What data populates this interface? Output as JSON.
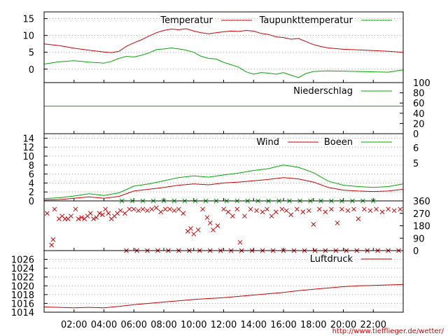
{
  "chart_data": [
    {
      "type": "line",
      "panel": "temperature",
      "ylim": [
        -4,
        17
      ],
      "yticks": [
        0,
        5,
        10,
        15
      ],
      "grid": true,
      "legend": "top-right",
      "series": [
        {
          "name": "Temperatur",
          "color": "#cc0000",
          "x": [
            0,
            1,
            2,
            3,
            4,
            4.5,
            5,
            5.5,
            6,
            6.5,
            7,
            7.5,
            8,
            8.5,
            9,
            9.5,
            10,
            10.5,
            11,
            11.5,
            12,
            12.5,
            13,
            13.5,
            14,
            14.5,
            15,
            15.5,
            16,
            16.5,
            17,
            17.5,
            18,
            18.5,
            19,
            20,
            21,
            22,
            23,
            24
          ],
          "y": [
            7.5,
            7,
            6.2,
            5.6,
            5.1,
            4.9,
            5.3,
            6.8,
            7.8,
            8.7,
            9.8,
            10.8,
            11.5,
            11.9,
            11.7,
            12,
            11.3,
            10.8,
            10.5,
            10.8,
            11.1,
            11.3,
            11.2,
            11.5,
            11.3,
            10.6,
            10.3,
            9.6,
            9.4,
            8.9,
            9.1,
            8.2,
            7.3,
            6.7,
            6.3,
            5.9,
            5.7,
            5.5,
            5.3,
            5.0
          ]
        },
        {
          "name": "Taupunkttemperatur",
          "color": "#00aa00",
          "x": [
            0,
            1,
            2,
            3,
            4,
            4.5,
            5,
            5.5,
            6,
            6.5,
            7,
            7.5,
            8,
            8.5,
            9,
            9.5,
            10,
            10.5,
            11,
            11.5,
            12,
            12.5,
            13,
            13.5,
            14,
            14.5,
            15,
            15.5,
            16,
            16.5,
            17,
            17.5,
            18,
            18.5,
            19,
            20,
            21,
            22,
            23,
            24
          ],
          "y": [
            1.5,
            2.2,
            2.5,
            2.1,
            1.8,
            2.3,
            3.2,
            3.8,
            3.6,
            4.1,
            4.8,
            5.8,
            6.0,
            6.3,
            6.0,
            5.6,
            5.0,
            3.8,
            3.2,
            3.0,
            2.0,
            1.3,
            0.6,
            -0.8,
            -1.5,
            -1.0,
            -1.2,
            -1.5,
            -1.0,
            -1.8,
            -2.5,
            -1.3,
            -0.7,
            -0.6,
            -0.5,
            -0.6,
            -0.7,
            -0.8,
            -0.9,
            -0.2
          ]
        }
      ]
    },
    {
      "type": "line",
      "panel": "precipitation",
      "ylim": [
        0,
        100
      ],
      "yticks": [
        0,
        20,
        40,
        60,
        80,
        100
      ],
      "legend": "top-right",
      "series": [
        {
          "name": "Niederschlag",
          "color": "#00aa00",
          "x": [
            0,
            24
          ],
          "y": [
            54,
            54
          ]
        }
      ]
    },
    {
      "type": "line",
      "panel": "wind",
      "ylim": [
        0,
        15
      ],
      "yticks": [
        0,
        2,
        4,
        6,
        8,
        10,
        12,
        14
      ],
      "right_ticks": [
        "6",
        "5"
      ],
      "grid": true,
      "legend": "top-right",
      "series": [
        {
          "name": "Wind",
          "color": "#cc0000",
          "x": [
            0,
            1,
            2,
            3,
            4,
            5,
            6,
            7,
            8,
            9,
            10,
            11,
            12,
            13,
            14,
            15,
            16,
            17,
            18,
            19,
            20,
            21,
            22,
            23,
            24
          ],
          "y": [
            0.2,
            0.3,
            0.6,
            0.9,
            0.6,
            1.0,
            2.2,
            2.6,
            3.0,
            3.5,
            3.8,
            3.6,
            4.0,
            4.2,
            4.5,
            4.8,
            5.2,
            4.9,
            4.2,
            3.0,
            2.4,
            2.2,
            2.1,
            2.2,
            2.6
          ]
        },
        {
          "name": "Boeen",
          "color": "#00aa00",
          "x": [
            0,
            1,
            2,
            3,
            4,
            5,
            6,
            7,
            8,
            9,
            10,
            11,
            12,
            13,
            14,
            15,
            16,
            17,
            18,
            19,
            20,
            21,
            22,
            23,
            24
          ],
          "y": [
            0.5,
            0.7,
            1.1,
            1.6,
            1.2,
            1.8,
            3.3,
            3.8,
            4.5,
            5.2,
            5.6,
            5.3,
            5.8,
            6.2,
            6.8,
            7.2,
            8.0,
            7.5,
            6.3,
            4.4,
            3.5,
            3.2,
            3.0,
            3.2,
            3.8
          ]
        }
      ]
    },
    {
      "type": "scatter",
      "panel": "wind-direction",
      "ylim": [
        0,
        360
      ],
      "yticks": [
        0,
        90,
        180,
        270,
        360
      ],
      "series": [
        {
          "color": "#cc0000",
          "points": [
            [
              0.2,
              270
            ],
            [
              0.5,
              40
            ],
            [
              0.6,
              80
            ],
            [
              0.7,
              300
            ],
            [
              1,
              230
            ],
            [
              1.2,
              250
            ],
            [
              1.4,
              230
            ],
            [
              1.6,
              230
            ],
            [
              1.8,
              250
            ],
            [
              2.1,
              300
            ],
            [
              2.3,
              230
            ],
            [
              2.5,
              240
            ],
            [
              2.7,
              230
            ],
            [
              2.9,
              250
            ],
            [
              3.1,
              270
            ],
            [
              3.3,
              230
            ],
            [
              3.5,
              240
            ],
            [
              3.7,
              270
            ],
            [
              3.9,
              260
            ],
            [
              4.1,
              300
            ],
            [
              4.3,
              270
            ],
            [
              4.5,
              230
            ],
            [
              4.7,
              250
            ],
            [
              4.9,
              270
            ],
            [
              5.1,
              290
            ],
            [
              5.4,
              270
            ],
            [
              5.7,
              300
            ],
            [
              6.0,
              300
            ],
            [
              6.3,
              290
            ],
            [
              6.6,
              300
            ],
            [
              6.9,
              290
            ],
            [
              7.2,
              300
            ],
            [
              7.5,
              310
            ],
            [
              7.8,
              280
            ],
            [
              8.1,
              300
            ],
            [
              8.4,
              300
            ],
            [
              8.7,
              290
            ],
            [
              9.0,
              300
            ],
            [
              9.3,
              270
            ],
            [
              9.6,
              140
            ],
            [
              9.8,
              160
            ],
            [
              10.0,
              120
            ],
            [
              10.3,
              150
            ],
            [
              10.6,
              300
            ],
            [
              10.9,
              240
            ],
            [
              11.1,
              200
            ],
            [
              11.3,
              150
            ],
            [
              11.6,
              180
            ],
            [
              12.0,
              300
            ],
            [
              12.3,
              280
            ],
            [
              12.6,
              250
            ],
            [
              12.9,
              300
            ],
            [
              13.1,
              60
            ],
            [
              13.4,
              250
            ],
            [
              13.8,
              300
            ],
            [
              14.2,
              290
            ],
            [
              14.6,
              280
            ],
            [
              14.9,
              300
            ],
            [
              15.2,
              250
            ],
            [
              15.5,
              280
            ],
            [
              15.9,
              300
            ],
            [
              16.2,
              290
            ],
            [
              16.5,
              260
            ],
            [
              16.9,
              300
            ],
            [
              17.3,
              280
            ],
            [
              17.7,
              290
            ],
            [
              18.0,
              190
            ],
            [
              18.4,
              300
            ],
            [
              18.8,
              280
            ],
            [
              19.2,
              300
            ],
            [
              19.6,
              200
            ],
            [
              19.9,
              300
            ],
            [
              20.3,
              290
            ],
            [
              20.7,
              300
            ],
            [
              21.0,
              230
            ],
            [
              21.4,
              300
            ],
            [
              21.8,
              290
            ],
            [
              22.2,
              300
            ],
            [
              22.6,
              280
            ],
            [
              23.0,
              300
            ],
            [
              23.4,
              290
            ],
            [
              23.8,
              300
            ]
          ]
        },
        {
          "color": "#00aa00",
          "points": [
            [
              5.2,
              360
            ],
            [
              5.9,
              360
            ],
            [
              6.6,
              360
            ],
            [
              7.3,
              360
            ],
            [
              8.0,
              360
            ],
            [
              8.7,
              360
            ],
            [
              9.4,
              360
            ],
            [
              10.1,
              360
            ],
            [
              10.8,
              360
            ],
            [
              11.5,
              360
            ],
            [
              12.2,
              360
            ],
            [
              12.9,
              360
            ],
            [
              13.6,
              360
            ],
            [
              14.3,
              360
            ],
            [
              15.0,
              360
            ],
            [
              15.7,
              360
            ],
            [
              16.4,
              360
            ],
            [
              17.1,
              360
            ],
            [
              17.8,
              360
            ],
            [
              18.5,
              360
            ],
            [
              19.2,
              360
            ],
            [
              19.9,
              360
            ],
            [
              20.6,
              360
            ],
            [
              21.3,
              360
            ],
            [
              22.0,
              360
            ]
          ]
        },
        {
          "color": "#cc0000",
          "points": [
            [
              5.5,
              0
            ],
            [
              6.2,
              0
            ],
            [
              6.9,
              0
            ],
            [
              7.6,
              0
            ],
            [
              8.3,
              0
            ],
            [
              9.0,
              0
            ],
            [
              9.7,
              0
            ],
            [
              10.4,
              0
            ],
            [
              11.1,
              0
            ],
            [
              11.8,
              0
            ],
            [
              12.5,
              0
            ],
            [
              13.2,
              0
            ],
            [
              13.9,
              0
            ],
            [
              14.6,
              0
            ],
            [
              15.3,
              0
            ],
            [
              16.0,
              0
            ],
            [
              16.7,
              0
            ],
            [
              17.4,
              0
            ],
            [
              18.1,
              0
            ],
            [
              18.8,
              0
            ],
            [
              19.5,
              0
            ],
            [
              20.2,
              0
            ],
            [
              20.9,
              0
            ],
            [
              21.6,
              0
            ],
            [
              22.3,
              0
            ],
            [
              23.0,
              0
            ],
            [
              23.7,
              0
            ]
          ]
        }
      ]
    },
    {
      "type": "line",
      "panel": "pressure",
      "ylim": [
        1014,
        1028
      ],
      "yticks": [
        1014,
        1016,
        1018,
        1020,
        1022,
        1024,
        1026
      ],
      "xlim": [
        0,
        24
      ],
      "xticks": [
        2,
        4,
        6,
        8,
        10,
        12,
        14,
        16,
        18,
        20,
        22
      ],
      "xticklabels": [
        "02:00",
        "04:00",
        "06:00",
        "08:00",
        "10:00",
        "12:00",
        "14:00",
        "16:00",
        "18:00",
        "20:00",
        "22:00"
      ],
      "grid": true,
      "legend": "top-right",
      "series": [
        {
          "name": "Luftdruck",
          "color": "#cc0000",
          "x": [
            0,
            1,
            2,
            3,
            4,
            5,
            6,
            7,
            8,
            9,
            10,
            11,
            12,
            13,
            14,
            15,
            16,
            17,
            18,
            19,
            20,
            21,
            22,
            23,
            24
          ],
          "y": [
            1015.2,
            1015.1,
            1015.0,
            1015.1,
            1015.0,
            1015.3,
            1015.7,
            1016.0,
            1016.3,
            1016.6,
            1016.9,
            1017.1,
            1017.3,
            1017.6,
            1017.9,
            1018.2,
            1018.5,
            1018.9,
            1019.2,
            1019.5,
            1019.8,
            1020.0,
            1020.1,
            1020.2,
            1020.3
          ]
        }
      ]
    }
  ],
  "footer": {
    "url": "http://www.tiefflieger.de/wetter/"
  }
}
